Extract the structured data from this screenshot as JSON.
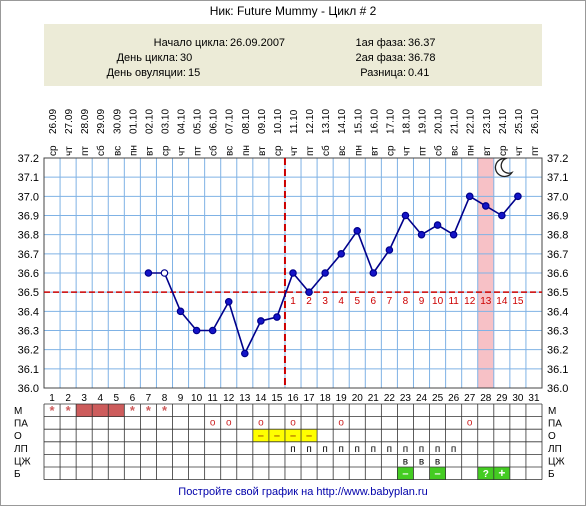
{
  "title": "Ник: Future Mummy - Цикл # 2",
  "info": {
    "start_label": "Начало цикла:",
    "start_value": "26.09.2007",
    "day_label": "День цикла:",
    "day_value": "30",
    "ovul_label": "День овуляции:",
    "ovul_value": "15",
    "phase1_label": "1ая фаза:",
    "phase1_value": "36.37",
    "phase2_label": "2ая фаза:",
    "phase2_value": "36.78",
    "diff_label": "Разница:",
    "diff_value": "0.41"
  },
  "footer_text": "Постройте свой график на http://www.babyplan.ru",
  "colors": {
    "line": "#00008b",
    "grid": "#7fb2e5",
    "coverline": "#cc0000",
    "highlight": "#f7c1c6",
    "menses": "#cd5c5c",
    "yellow": "#ffff00",
    "green": "#44cc22",
    "panel": "#ecebd7"
  },
  "chart_data": {
    "type": "line",
    "weekdays": [
      "ср",
      "чт",
      "пт",
      "сб",
      "вс",
      "пн",
      "вт",
      "ср",
      "чт",
      "пт",
      "сб",
      "вс",
      "пн",
      "вт",
      "ср",
      "чт",
      "пт",
      "сб",
      "вс",
      "пн",
      "вт",
      "ср",
      "чт",
      "пт",
      "сб",
      "вс",
      "пн",
      "вт",
      "ср",
      "чт",
      "пт"
    ],
    "dates": [
      "26.09",
      "27.09",
      "28.09",
      "29.09",
      "30.09",
      "01.10",
      "02.10",
      "03.10",
      "04.10",
      "05.10",
      "06.10",
      "07.10",
      "08.10",
      "09.10",
      "10.10",
      "11.10",
      "12.10",
      "13.10",
      "14.10",
      "15.10",
      "16.10",
      "17.10",
      "18.10",
      "19.10",
      "20.10",
      "21.10",
      "22.10",
      "23.10",
      "24.10",
      "25.10",
      "26.10"
    ],
    "cycle_days": [
      1,
      2,
      3,
      4,
      5,
      6,
      7,
      8,
      9,
      10,
      11,
      12,
      13,
      14,
      15,
      16,
      17,
      18,
      19,
      20,
      21,
      22,
      23,
      24,
      25,
      26,
      27,
      28,
      29,
      30,
      31
    ],
    "y_ticks": [
      "37.2",
      "37.1",
      "37.0",
      "36.9",
      "36.8",
      "36.7",
      "36.6",
      "36.5",
      "36.4",
      "36.3",
      "36.2",
      "36.1",
      "36.0"
    ],
    "ylim": [
      36.0,
      37.2
    ],
    "temperatures": [
      null,
      null,
      null,
      null,
      null,
      null,
      36.6,
      36.6,
      36.4,
      36.3,
      36.3,
      36.45,
      36.18,
      36.35,
      36.37,
      36.6,
      36.5,
      36.6,
      36.7,
      36.82,
      36.6,
      36.72,
      36.9,
      36.8,
      36.85,
      36.8,
      37.0,
      36.95,
      36.9,
      37.0,
      null
    ],
    "hollow_days": [
      8
    ],
    "coverline": 36.5,
    "ovulation_day": 15,
    "highlight_day": 28,
    "luteal_labels": [
      "1",
      "2",
      "3",
      "4",
      "5",
      "6",
      "7",
      "8",
      "9",
      "10",
      "11",
      "12",
      "13",
      "14",
      "15"
    ],
    "luteal_start_day": 16,
    "moon_day": 29,
    "grid": true
  },
  "rows": {
    "labels": [
      "М",
      "ПА",
      "О",
      "ЛП",
      "ЦЖ",
      "Б"
    ],
    "menses_star_days": [
      1,
      2,
      6,
      7,
      8
    ],
    "menses_block_days": [
      3,
      4,
      5
    ],
    "pa_days": [
      11,
      12,
      14,
      16,
      19,
      27
    ],
    "pa_mark": "o",
    "o_days": [
      14,
      15,
      16,
      17
    ],
    "o_mark": "–",
    "lp_days": [
      16,
      17,
      18,
      19,
      20,
      21,
      22,
      23,
      24,
      25,
      26
    ],
    "lp_mark": "п",
    "czh_days": [
      23,
      24,
      25
    ],
    "czh_mark": "в",
    "b_minus_days": [
      23,
      25
    ],
    "b_minus_mark": "–",
    "b_q_days": [
      28
    ],
    "b_q_mark": "?",
    "b_plus_days": [
      29
    ],
    "b_plus_mark": "+",
    "star_mark": "*"
  }
}
